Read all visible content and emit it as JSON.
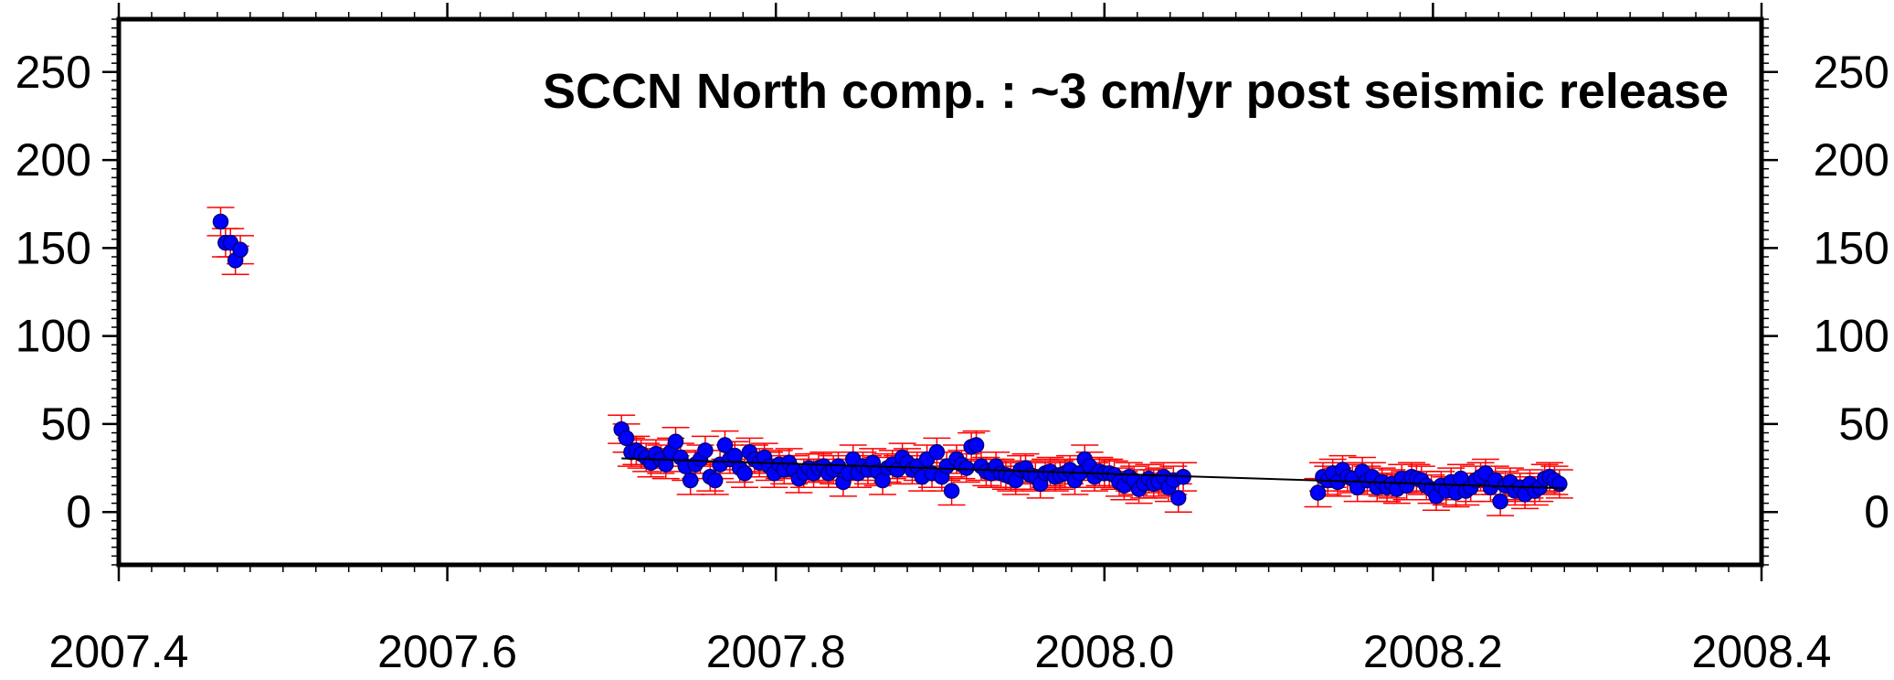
{
  "chart_data": {
    "type": "scatter",
    "title": "SCCN  North  comp.  :  ~3  cm/yr  post  seismic  release",
    "xlabel": "",
    "ylabel": "",
    "xlim": [
      2007.4,
      2008.4
    ],
    "ylim": [
      -30,
      280
    ],
    "x_ticks": [
      2007.4,
      2007.6,
      2007.8,
      2008.0,
      2008.2,
      2008.4
    ],
    "x_tick_labels": [
      "2007.4",
      "2007.6",
      "2007.8",
      "2008.0",
      "2008.2",
      "2008.4"
    ],
    "y_ticks": [
      0,
      50,
      100,
      150,
      200,
      250
    ],
    "y_tick_labels": [
      "0",
      "50",
      "100",
      "150",
      "200",
      "250"
    ],
    "grid": false,
    "colors": {
      "points": "#0000ff",
      "point_edge": "#000080",
      "error_bars": "#ff0000",
      "trend": "#000000",
      "frame": "#000000"
    },
    "series": [
      {
        "marker": "circle",
        "error": 8,
        "points": [
          [
            2007.462,
            165
          ],
          [
            2007.465,
            153
          ],
          [
            2007.468,
            153
          ],
          [
            2007.471,
            143
          ],
          [
            2007.474,
            149
          ],
          [
            2007.706,
            47
          ],
          [
            2007.709,
            42
          ],
          [
            2007.712,
            34
          ],
          [
            2007.715,
            35
          ],
          [
            2007.718,
            33
          ],
          [
            2007.721,
            31
          ],
          [
            2007.724,
            28
          ],
          [
            2007.727,
            33
          ],
          [
            2007.73,
            30
          ],
          [
            2007.733,
            27
          ],
          [
            2007.736,
            34
          ],
          [
            2007.739,
            40
          ],
          [
            2007.742,
            31
          ],
          [
            2007.745,
            26
          ],
          [
            2007.748,
            18
          ],
          [
            2007.751,
            27
          ],
          [
            2007.754,
            30
          ],
          [
            2007.757,
            35
          ],
          [
            2007.76,
            20
          ],
          [
            2007.763,
            18
          ],
          [
            2007.766,
            27
          ],
          [
            2007.769,
            38
          ],
          [
            2007.772,
            30
          ],
          [
            2007.775,
            32
          ],
          [
            2007.778,
            25
          ],
          [
            2007.781,
            22
          ],
          [
            2007.784,
            34
          ],
          [
            2007.787,
            30
          ],
          [
            2007.79,
            28
          ],
          [
            2007.793,
            31
          ],
          [
            2007.796,
            26
          ],
          [
            2007.799,
            22
          ],
          [
            2007.802,
            27
          ],
          [
            2007.805,
            24
          ],
          [
            2007.808,
            28
          ],
          [
            2007.811,
            24
          ],
          [
            2007.814,
            19
          ],
          [
            2007.817,
            22
          ],
          [
            2007.82,
            25
          ],
          [
            2007.823,
            22
          ],
          [
            2007.826,
            25
          ],
          [
            2007.829,
            26
          ],
          [
            2007.832,
            22
          ],
          [
            2007.835,
            24
          ],
          [
            2007.838,
            26
          ],
          [
            2007.841,
            17
          ],
          [
            2007.844,
            22
          ],
          [
            2007.847,
            30
          ],
          [
            2007.85,
            22
          ],
          [
            2007.853,
            26
          ],
          [
            2007.856,
            24
          ],
          [
            2007.859,
            28
          ],
          [
            2007.862,
            23
          ],
          [
            2007.865,
            18
          ],
          [
            2007.868,
            25
          ],
          [
            2007.871,
            27
          ],
          [
            2007.874,
            24
          ],
          [
            2007.877,
            31
          ],
          [
            2007.88,
            28
          ],
          [
            2007.883,
            24
          ],
          [
            2007.886,
            26
          ],
          [
            2007.889,
            20
          ],
          [
            2007.892,
            30
          ],
          [
            2007.895,
            22
          ],
          [
            2007.898,
            34
          ],
          [
            2007.901,
            20
          ],
          [
            2007.904,
            26
          ],
          [
            2007.907,
            12
          ],
          [
            2007.91,
            30
          ],
          [
            2007.913,
            27
          ],
          [
            2007.916,
            25
          ],
          [
            2007.919,
            37
          ],
          [
            2007.922,
            38
          ],
          [
            2007.925,
            26
          ],
          [
            2007.928,
            23
          ],
          [
            2007.931,
            22
          ],
          [
            2007.934,
            26
          ],
          [
            2007.937,
            22
          ],
          [
            2007.94,
            21
          ],
          [
            2007.943,
            20
          ],
          [
            2007.946,
            18
          ],
          [
            2007.949,
            24
          ],
          [
            2007.952,
            25
          ],
          [
            2007.955,
            21
          ],
          [
            2007.958,
            20
          ],
          [
            2007.961,
            16
          ],
          [
            2007.964,
            22
          ],
          [
            2007.967,
            23
          ],
          [
            2007.97,
            20
          ],
          [
            2007.973,
            21
          ],
          [
            2007.976,
            22
          ],
          [
            2007.979,
            24
          ],
          [
            2007.982,
            18
          ],
          [
            2007.985,
            22
          ],
          [
            2007.988,
            30
          ],
          [
            2007.991,
            26
          ],
          [
            2007.994,
            20
          ],
          [
            2007.997,
            23
          ],
          [
            2008.0,
            22
          ],
          [
            2008.003,
            22
          ],
          [
            2008.006,
            21
          ],
          [
            2008.009,
            17
          ],
          [
            2008.012,
            15
          ],
          [
            2008.015,
            20
          ],
          [
            2008.018,
            18
          ],
          [
            2008.021,
            13
          ],
          [
            2008.024,
            16
          ],
          [
            2008.027,
            19
          ],
          [
            2008.03,
            16
          ],
          [
            2008.033,
            17
          ],
          [
            2008.036,
            20
          ],
          [
            2008.039,
            14
          ],
          [
            2008.042,
            18
          ],
          [
            2008.045,
            8
          ],
          [
            2008.048,
            20
          ],
          [
            2008.13,
            11
          ],
          [
            2008.133,
            20
          ],
          [
            2008.136,
            18
          ],
          [
            2008.139,
            22
          ],
          [
            2008.142,
            17
          ],
          [
            2008.145,
            24
          ],
          [
            2008.148,
            20
          ],
          [
            2008.151,
            19
          ],
          [
            2008.154,
            14
          ],
          [
            2008.157,
            23
          ],
          [
            2008.16,
            18
          ],
          [
            2008.163,
            20
          ],
          [
            2008.166,
            14
          ],
          [
            2008.169,
            17
          ],
          [
            2008.172,
            14
          ],
          [
            2008.175,
            16
          ],
          [
            2008.178,
            13
          ],
          [
            2008.181,
            19
          ],
          [
            2008.184,
            15
          ],
          [
            2008.187,
            20
          ],
          [
            2008.19,
            19
          ],
          [
            2008.193,
            18
          ],
          [
            2008.196,
            15
          ],
          [
            2008.199,
            13
          ],
          [
            2008.202,
            9
          ],
          [
            2008.205,
            15
          ],
          [
            2008.208,
            12
          ],
          [
            2008.211,
            17
          ],
          [
            2008.214,
            11
          ],
          [
            2008.217,
            19
          ],
          [
            2008.22,
            12
          ],
          [
            2008.223,
            14
          ],
          [
            2008.226,
            18
          ],
          [
            2008.229,
            20
          ],
          [
            2008.232,
            22
          ],
          [
            2008.235,
            14
          ],
          [
            2008.238,
            18
          ],
          [
            2008.241,
            6
          ],
          [
            2008.244,
            15
          ],
          [
            2008.247,
            17
          ],
          [
            2008.25,
            12
          ],
          [
            2008.253,
            14
          ],
          [
            2008.256,
            10
          ],
          [
            2008.259,
            16
          ],
          [
            2008.262,
            12
          ],
          [
            2008.265,
            14
          ],
          [
            2008.268,
            19
          ],
          [
            2008.271,
            20
          ],
          [
            2008.274,
            18
          ],
          [
            2008.277,
            16
          ]
        ]
      }
    ],
    "trend_line": {
      "x": [
        2007.706,
        2008.28
      ],
      "y": [
        30.5,
        13.5
      ]
    }
  }
}
